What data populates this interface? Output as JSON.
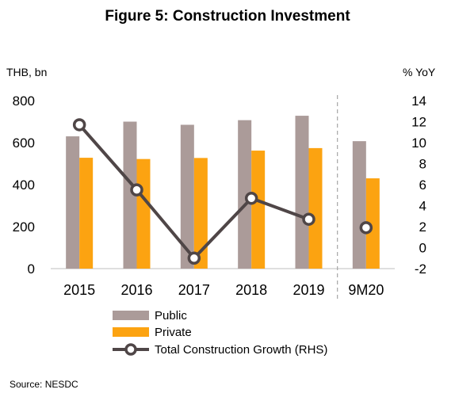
{
  "chart_data": {
    "type": "bar",
    "title": "Figure 5: Construction Investment",
    "ylabel_left": "THB, bn",
    "ylabel_right": "% YoY",
    "categories": [
      "2015",
      "2016",
      "2017",
      "2018",
      "2019",
      "9M20"
    ],
    "ylim_left": [
      0,
      800
    ],
    "yticks_left": [
      "0",
      "200",
      "400",
      "600",
      "800"
    ],
    "ylim_right": [
      -2,
      14
    ],
    "yticks_right": [
      "-2",
      "0",
      "2",
      "4",
      "6",
      "8",
      "10",
      "12",
      "14"
    ],
    "series": [
      {
        "name": "Public",
        "type": "bar",
        "axis": "left",
        "color": "#ab9b99",
        "values": [
          630,
          700,
          685,
          707,
          728,
          607
        ]
      },
      {
        "name": "Private",
        "type": "bar",
        "axis": "left",
        "color": "#fca311",
        "values": [
          528,
          522,
          527,
          562,
          574,
          430
        ]
      },
      {
        "name": "Total Construction Growth (RHS)",
        "type": "line",
        "axis": "right",
        "color": "#4f4647",
        "values": [
          11.7,
          5.5,
          -1.0,
          4.7,
          2.7,
          1.9
        ],
        "connected_points": 5
      }
    ],
    "legend_position": "bottom",
    "grid": false,
    "separator_before": "9M20"
  },
  "footer": {
    "source": "Source: NESDC"
  }
}
